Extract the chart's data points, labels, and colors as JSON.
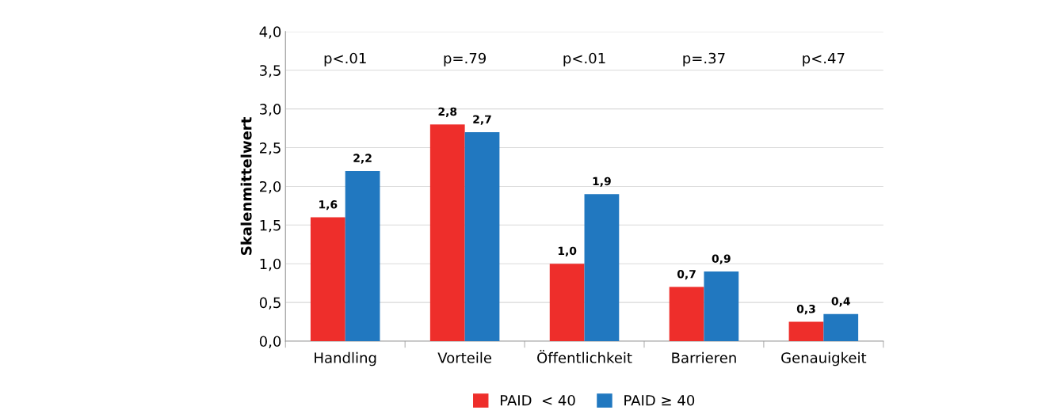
{
  "chart_data": {
    "type": "bar",
    "ylabel": "Skalenmittelwert",
    "categories": [
      "Handling",
      "Vorteile",
      "Öffentlichkeit",
      "Barrieren",
      "Genauigkeit"
    ],
    "series": [
      {
        "name": "PAID  < 40",
        "color": "#ee2e2b",
        "values": [
          1.6,
          2.8,
          1.0,
          0.7,
          0.25
        ],
        "value_labels": [
          "1,6",
          "2,8",
          "1,0",
          "0,7",
          "0,3"
        ]
      },
      {
        "name": "PAID ≥ 40",
        "color": "#2178c0",
        "values": [
          2.2,
          2.7,
          1.9,
          0.9,
          0.35
        ],
        "value_labels": [
          "2,2",
          "2,7",
          "1,9",
          "0,9",
          "0,4"
        ]
      }
    ],
    "ylim": [
      0,
      4
    ],
    "yticks": [
      {
        "value": 0,
        "label": "0,0"
      },
      {
        "value": 0.5,
        "label": "0,5"
      },
      {
        "value": 1,
        "label": "1,0"
      },
      {
        "value": 1.5,
        "label": "1,5"
      },
      {
        "value": 2,
        "label": "2,0"
      },
      {
        "value": 2.5,
        "label": "2,5"
      },
      {
        "value": 3,
        "label": "3,0"
      },
      {
        "value": 3.5,
        "label": "3,5"
      },
      {
        "value": 4,
        "label": "4,0"
      }
    ],
    "annotations": [
      "p<.01",
      "p=.79",
      "p<.01",
      "p=.37",
      "p<.47"
    ],
    "grid": "y",
    "legend": "bottom"
  }
}
